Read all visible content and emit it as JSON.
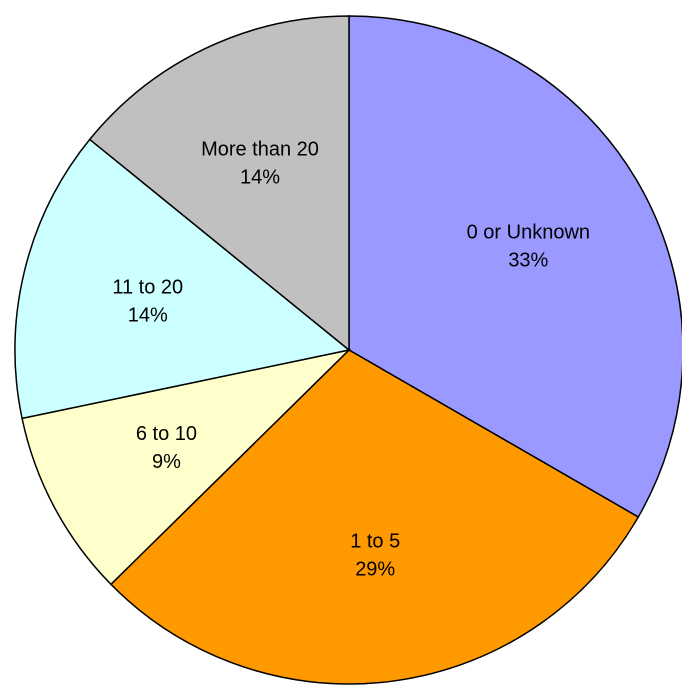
{
  "chart_data": {
    "type": "pie",
    "categories": [
      "0 or Unknown",
      "1 to 5",
      "6 to 10",
      "11 to 20",
      "More than 20"
    ],
    "values": [
      33,
      29,
      9,
      14,
      14
    ],
    "value_labels": [
      "33%",
      "29%",
      "9%",
      "14%",
      "14%"
    ],
    "colors": [
      "#9999ff",
      "#ff9900",
      "#ffffcc",
      "#ccffff",
      "#c0c0c0"
    ]
  }
}
